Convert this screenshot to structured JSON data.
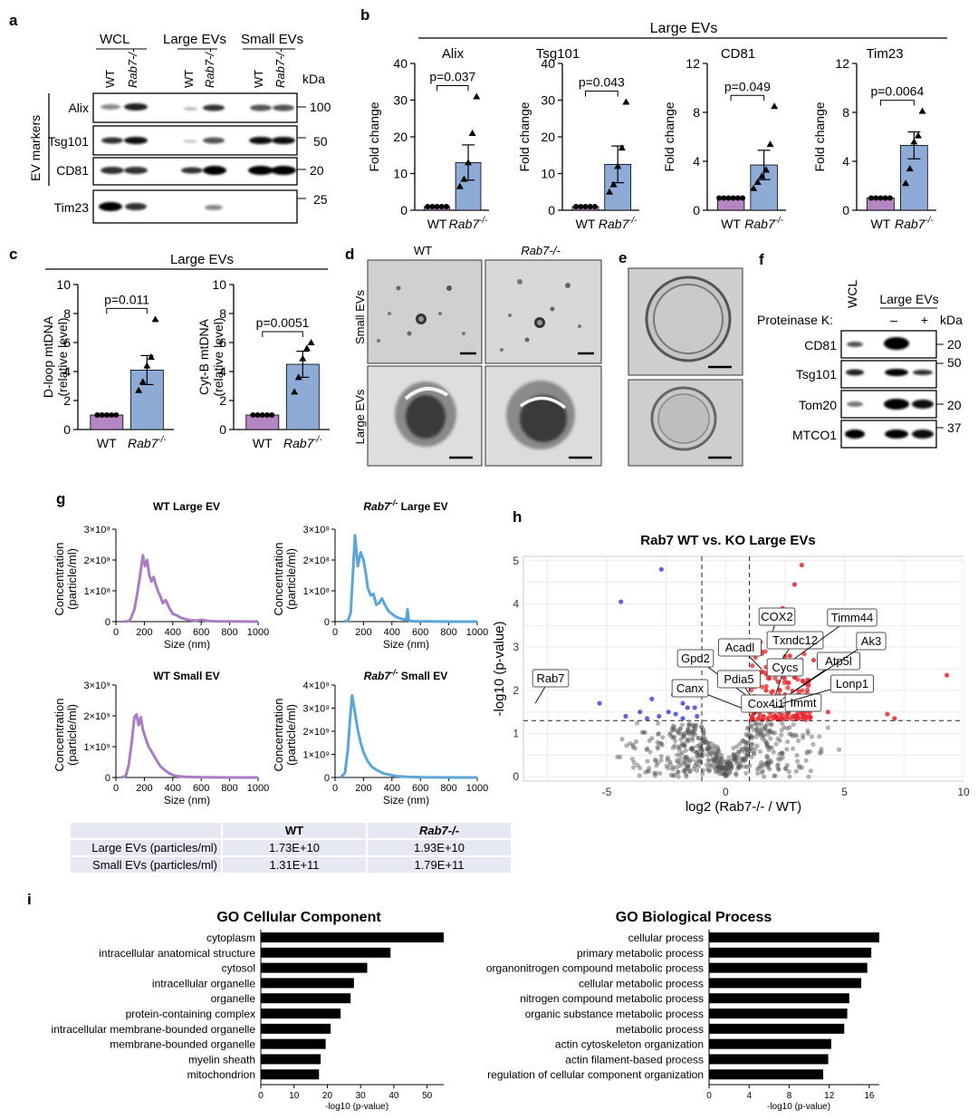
{
  "panels": {
    "a": {
      "letter": "a",
      "header": {
        "wcl": "WCL",
        "large": "Large EVs",
        "small": "Small EVs"
      },
      "lanes": [
        "WT",
        "Rab7-/-",
        "WT",
        "Rab7-/-",
        "WT",
        "Rab7-/-"
      ],
      "kda_label": "kDa",
      "group_label": "EV markers",
      "blots": [
        "Alix",
        "Tsg101",
        "CD81",
        "Tim23"
      ],
      "markers": [
        "100",
        "50",
        "20",
        "25"
      ]
    },
    "b": {
      "letter": "b",
      "title": "Large EVs",
      "ylabel": "Fold change",
      "xlabels": [
        "WT",
        "Rab7-/-"
      ]
    },
    "c": {
      "letter": "c",
      "title": "Large EVs",
      "xlabels": [
        "WT",
        "Rab7-/-"
      ]
    },
    "d": {
      "letter": "d",
      "cols": [
        "WT",
        "Rab7-/-"
      ],
      "rows": [
        "Small EVs",
        "Large EVs"
      ]
    },
    "e": {
      "letter": "e"
    },
    "f": {
      "letter": "f",
      "wcl": "WCL",
      "large": "Large EVs",
      "proteinase": "Proteinase K:",
      "minus": "–",
      "plus": "+",
      "kda_label": "kDa",
      "blots": [
        "CD81",
        "Tsg101",
        "Tom20",
        "MTCO1"
      ],
      "markers": [
        "20",
        "50",
        "20",
        "37"
      ]
    },
    "g": {
      "letter": "g",
      "ylabel1": "Concentration",
      "ylabel2": "(particle/ml)",
      "xlabel": "Size (nm)",
      "table": {
        "col1": "WT",
        "col2": "Rab7-/-",
        "rows": [
          {
            "label": "Large EVs (particles/ml)",
            "wt": "1.73E+10",
            "ko": "1.93E+10"
          },
          {
            "label": "Small EVs (particles/ml)",
            "wt": "1.31E+11",
            "ko": "1.79E+11"
          }
        ]
      }
    },
    "h": {
      "letter": "h",
      "title": "Rab7 WT vs. KO Large EVs",
      "xlabel": "log2 (Rab7-/- / WT)",
      "ylabel": "-log10 (p-value)",
      "labels": [
        "Rab7",
        "Gpd2",
        "Canx",
        "Pdia5",
        "Cox4i1",
        "Acadl",
        "COX2",
        "Txndc12",
        "Timm44",
        "Cycs",
        "Atp5l",
        "Ak3",
        "Immt",
        "Lonp1"
      ]
    },
    "i": {
      "letter": "i",
      "xlabel": "-log10 (p-value)"
    }
  },
  "colors": {
    "wt": "#b486c4",
    "ko": "#8eaad6",
    "wt_line": "#a97cc4",
    "ko_line": "#5aa6d6",
    "up": "#e8262b",
    "down": "#3b3bd6",
    "ns": "#333333"
  },
  "chart_data": [
    {
      "type": "bar",
      "title": "Alix",
      "categories": [
        "WT",
        "Rab7-/-"
      ],
      "values": [
        1,
        13
      ],
      "errors": [
        0,
        4.8
      ],
      "ylim": [
        0,
        40
      ],
      "yticks": [
        0,
        10,
        20,
        30,
        40
      ],
      "points": [
        [
          1,
          1,
          1,
          1,
          1
        ],
        [
          6.5,
          8.5,
          13,
          21,
          31
        ]
      ],
      "pvalue": "p=0.037"
    },
    {
      "type": "bar",
      "title": "Tsg101",
      "categories": [
        "WT",
        "Rab7-/-"
      ],
      "values": [
        1,
        12.5
      ],
      "errors": [
        0,
        5
      ],
      "ylim": [
        0,
        40
      ],
      "yticks": [
        0,
        10,
        20,
        30,
        40
      ],
      "points": [
        [
          1,
          1,
          1,
          1,
          1
        ],
        [
          5,
          7,
          12,
          17,
          29.5
        ]
      ],
      "pvalue": "p=0.043"
    },
    {
      "type": "bar",
      "title": "CD81",
      "categories": [
        "WT",
        "Rab7-/-"
      ],
      "values": [
        1,
        3.7
      ],
      "errors": [
        0,
        1.2
      ],
      "ylim": [
        0,
        12
      ],
      "yticks": [
        0,
        4,
        8,
        12
      ],
      "points": [
        [
          1,
          1,
          1,
          1,
          1,
          1
        ],
        [
          1.8,
          2.3,
          2.8,
          3.3,
          5.4,
          8.5
        ]
      ],
      "pvalue": "p=0.049"
    },
    {
      "type": "bar",
      "title": "Tim23",
      "categories": [
        "WT",
        "Rab7-/-"
      ],
      "values": [
        1,
        5.3
      ],
      "errors": [
        0,
        1.1
      ],
      "ylim": [
        0,
        12
      ],
      "yticks": [
        0,
        4,
        8,
        12
      ],
      "points": [
        [
          1,
          1,
          1,
          1,
          1
        ],
        [
          2.2,
          3.4,
          5.6,
          6.1,
          8.1
        ]
      ],
      "pvalue": "p=0.0064"
    },
    {
      "type": "bar",
      "ylabel": "D-loop mtDNA (relative level)",
      "categories": [
        "WT",
        "Rab7-/-"
      ],
      "values": [
        1,
        4.1
      ],
      "errors": [
        0,
        1.0
      ],
      "ylim": [
        0,
        10
      ],
      "yticks": [
        0,
        2,
        4,
        6,
        8,
        10
      ],
      "points": [
        [
          1,
          1,
          1,
          1,
          1
        ],
        [
          2.7,
          3.3,
          4.4,
          5.0,
          7.6
        ]
      ],
      "pvalue": "p=0.011"
    },
    {
      "type": "bar",
      "ylabel": "Cyt-B mtDNA (relative level)",
      "categories": [
        "WT",
        "Rab7-/-"
      ],
      "values": [
        1,
        4.5
      ],
      "errors": [
        0,
        0.9
      ],
      "ylim": [
        0,
        10
      ],
      "yticks": [
        0,
        2,
        4,
        6,
        8,
        10
      ],
      "points": [
        [
          1,
          1,
          1,
          1,
          1
        ],
        [
          2.6,
          3.6,
          4.9,
          5.6,
          6.0
        ]
      ],
      "pvalue": "p=0.0051"
    },
    {
      "type": "line",
      "title": "WT Large EV",
      "xlim": [
        0,
        1000
      ],
      "xticks": [
        0,
        200,
        400,
        600,
        800,
        1000
      ],
      "ylim": [
        0,
        300000000.0
      ],
      "yticks": [
        "0",
        "1×10⁸",
        "2×10⁸",
        "3×10⁸"
      ],
      "color_key": "wt_line",
      "x": [
        50,
        80,
        100,
        130,
        150,
        170,
        190,
        205,
        220,
        235,
        250,
        265,
        280,
        295,
        310,
        330,
        350,
        375,
        400,
        430,
        460,
        490,
        520,
        560,
        600,
        650,
        700,
        800,
        1000
      ],
      "y": [
        0,
        0.01,
        0.05,
        0.4,
        0.9,
        1.5,
        2.15,
        1.8,
        2.0,
        1.5,
        1.3,
        1.45,
        1.2,
        1.0,
        0.85,
        0.6,
        0.7,
        0.45,
        0.25,
        0.2,
        0.12,
        0.08,
        0.05,
        0.03,
        0.06,
        0.02,
        0.01,
        0.005,
        0
      ]
    },
    {
      "type": "line",
      "title": "Rab7-/- Large EV",
      "xlim": [
        0,
        1000
      ],
      "xticks": [
        0,
        200,
        400,
        600,
        800,
        1000
      ],
      "ylim": [
        0,
        300000000.0
      ],
      "yticks": [
        "0",
        "1×10⁸",
        "2×10⁸",
        "3×10⁸"
      ],
      "color_key": "ko_line",
      "x": [
        60,
        90,
        110,
        125,
        140,
        160,
        180,
        200,
        215,
        230,
        250,
        270,
        290,
        310,
        330,
        350,
        375,
        400,
        430,
        460,
        500,
        510,
        518,
        525,
        560,
        650,
        800,
        1000
      ],
      "y": [
        0,
        0.02,
        0.3,
        1.5,
        2.8,
        1.8,
        2.25,
        2.0,
        1.6,
        1.1,
        0.85,
        0.9,
        0.55,
        0.6,
        0.75,
        0.55,
        0.35,
        0.25,
        0.15,
        0.1,
        0.05,
        0.4,
        0.05,
        0.02,
        0.01,
        0.005,
        0,
        0
      ]
    },
    {
      "type": "line",
      "title": "WT Small EV",
      "xlim": [
        0,
        1000
      ],
      "xticks": [
        0,
        200,
        400,
        600,
        800,
        1000
      ],
      "ylim": [
        0,
        3000000000.0
      ],
      "yticks": [
        "0",
        "1×10⁹",
        "2×10⁹",
        "3×10⁹"
      ],
      "color_key": "wt_line",
      "x": [
        40,
        70,
        90,
        110,
        130,
        145,
        160,
        175,
        190,
        210,
        230,
        250,
        280,
        310,
        340,
        380,
        420,
        480,
        600,
        800,
        1000
      ],
      "y": [
        0,
        0.05,
        0.4,
        1.1,
        1.95,
        2.05,
        1.7,
        1.95,
        1.55,
        1.25,
        1.0,
        0.85,
        0.6,
        0.38,
        0.25,
        0.12,
        0.05,
        0.02,
        0.01,
        0,
        0
      ]
    },
    {
      "type": "line",
      "title": "Rab7-/- Small EV",
      "xlim": [
        0,
        1000
      ],
      "xticks": [
        0,
        200,
        400,
        600,
        800,
        1000
      ],
      "ylim": [
        0,
        4000000000.0
      ],
      "yticks": [
        "0",
        "1×10⁹",
        "2×10⁹",
        "3×10⁹",
        "4×10⁹"
      ],
      "color_key": "ko_line",
      "x": [
        40,
        70,
        90,
        105,
        120,
        135,
        150,
        165,
        180,
        200,
        230,
        260,
        300,
        340,
        380,
        430,
        500,
        600,
        800,
        1000
      ],
      "y": [
        0,
        0.2,
        1.2,
        2.5,
        3.55,
        3.0,
        2.4,
        1.9,
        1.5,
        1.1,
        0.7,
        0.45,
        0.3,
        0.18,
        0.12,
        0.06,
        0.03,
        0.01,
        0,
        0
      ]
    },
    {
      "type": "scatter",
      "title": "Rab7 WT vs. KO Large EVs",
      "xlim": [
        -8.5,
        10
      ],
      "xticks": [
        -5,
        0,
        5,
        10
      ],
      "ylim": [
        -0.1,
        5.1
      ],
      "yticks": [
        0,
        1,
        2,
        3,
        4,
        5
      ],
      "vlines": [
        -1,
        1
      ],
      "hline": 1.3,
      "highlight": [
        {
          "label": "Rab7",
          "x": -8,
          "y": 1.7
        },
        {
          "label": "Gpd2",
          "x": 1.2,
          "y": 1.75
        },
        {
          "label": "Canx",
          "x": 1.1,
          "y": 1.5
        },
        {
          "label": "Pdia5",
          "x": 1.4,
          "y": 1.6
        },
        {
          "label": "Cox4i1",
          "x": 1.2,
          "y": 1.45
        },
        {
          "label": "Acadl",
          "x": 1.5,
          "y": 2.5
        },
        {
          "label": "COX2",
          "x": 1.8,
          "y": 3.0
        },
        {
          "label": "Txndc12",
          "x": 2.0,
          "y": 2.4
        },
        {
          "label": "Timm44",
          "x": 2.3,
          "y": 2.5
        },
        {
          "label": "Cycs",
          "x": 2.1,
          "y": 1.9
        },
        {
          "label": "Atp5l",
          "x": 2.4,
          "y": 1.8
        },
        {
          "label": "Ak3",
          "x": 2.8,
          "y": 1.95
        },
        {
          "label": "Immt",
          "x": 2.0,
          "y": 1.6
        },
        {
          "label": "Lonp1",
          "x": 2.4,
          "y": 1.7
        }
      ],
      "down_points": [
        [
          -2.7,
          4.8
        ],
        [
          -4.4,
          4.05
        ],
        [
          -5.3,
          1.7
        ],
        [
          -4.2,
          1.4
        ],
        [
          -3.6,
          1.5
        ],
        [
          -3.1,
          1.8
        ],
        [
          -2.2,
          1.9
        ],
        [
          -2,
          2.2
        ],
        [
          -1.6,
          1.6
        ],
        [
          -2.8,
          1.4
        ],
        [
          -1.8,
          1.35
        ],
        [
          -1.3,
          1.6
        ],
        [
          -2.4,
          1.5
        ],
        [
          -1.5,
          2.7
        ],
        [
          -1.8,
          1.7
        ],
        [
          -3.3,
          1.35
        ],
        [
          -2.1,
          1.45
        ],
        [
          -1.2,
          1.4
        ]
      ],
      "up_points": [
        [
          3.2,
          4.9
        ],
        [
          2.9,
          4.45
        ],
        [
          2.4,
          3.9
        ],
        [
          9.3,
          2.35
        ],
        [
          6.8,
          1.45
        ],
        [
          7.1,
          1.35
        ],
        [
          5.2,
          2.0
        ],
        [
          4.7,
          2.1
        ],
        [
          4.3,
          1.5
        ],
        [
          3.7,
          2.7
        ],
        [
          1.3,
          1.8
        ],
        [
          1.6,
          1.4
        ],
        [
          2.0,
          1.35
        ],
        [
          2.6,
          1.45
        ],
        [
          3.0,
          1.6
        ],
        [
          3.5,
          1.4
        ],
        [
          1.1,
          2.1
        ],
        [
          1.5,
          2.9
        ],
        [
          1.9,
          3.3
        ],
        [
          2.2,
          2.2
        ],
        [
          2.7,
          2.8
        ],
        [
          1.2,
          1.55
        ],
        [
          1.8,
          1.6
        ],
        [
          2.5,
          1.9
        ],
        [
          3.3,
          1.8
        ],
        [
          1.4,
          2.4
        ],
        [
          2.1,
          2.6
        ],
        [
          1.7,
          2.0
        ],
        [
          2.9,
          2.3
        ],
        [
          1.1,
          1.4
        ]
      ]
    },
    {
      "type": "bar",
      "orientation": "horizontal",
      "title": "GO Cellular Component",
      "categories": [
        "cytoplasm",
        "intracellular anatomical structure",
        "cytosol",
        "intracellular organelle",
        "organelle",
        "protein-containing complex",
        "intracellular membrane-bounded organelle",
        "membrane-bounded organelle",
        "myelin sheath",
        "mitochondrion"
      ],
      "values": [
        55,
        39,
        32,
        28,
        27,
        24,
        21,
        19.5,
        18,
        17.5
      ],
      "xlim": [
        0,
        55
      ],
      "xticks": [
        0,
        10,
        20,
        30,
        40,
        50
      ],
      "xlabel": "-log10 (p-value)"
    },
    {
      "type": "bar",
      "orientation": "horizontal",
      "title": "GO Biological Process",
      "categories": [
        "cellular process",
        "primary metabolic process",
        "organonitrogen compound metabolic process",
        "cellular metabolic process",
        "nitrogen compound metabolic process",
        "organic substance metabolic process",
        "metabolic process",
        "actin cytoskeleton organization",
        "actin filament-based process",
        "regulation of cellular component organization"
      ],
      "values": [
        17,
        16.2,
        15.8,
        15.2,
        14,
        13.8,
        13.5,
        12.2,
        11.9,
        11.4
      ],
      "xlim": [
        0,
        17
      ],
      "xticks": [
        0,
        4,
        8,
        12,
        16
      ],
      "xlabel": "-log10 (p-value)"
    }
  ]
}
